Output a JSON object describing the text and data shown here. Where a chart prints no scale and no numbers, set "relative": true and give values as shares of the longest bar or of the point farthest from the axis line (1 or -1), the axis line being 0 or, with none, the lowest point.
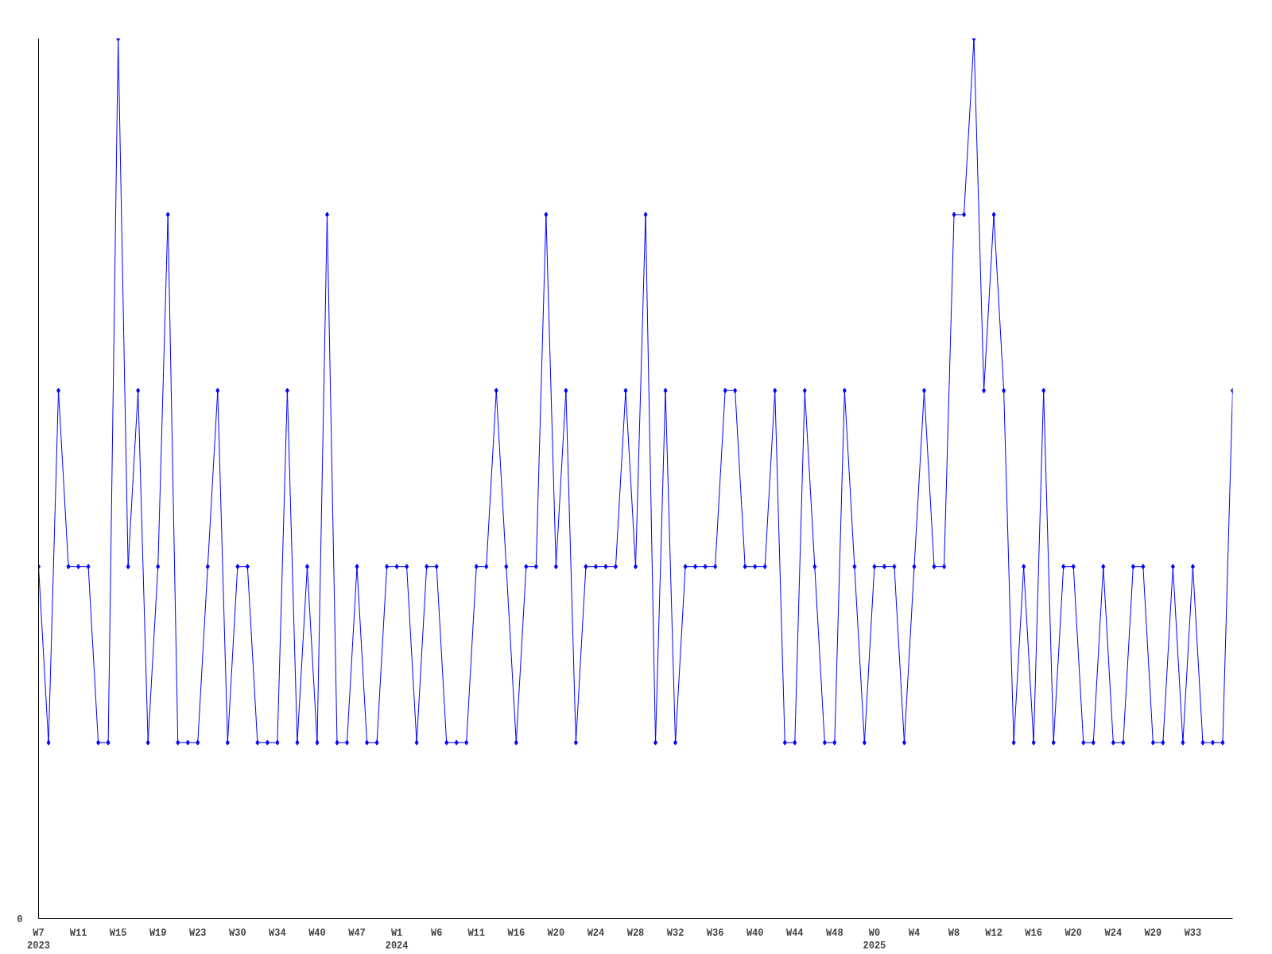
{
  "chart_data": {
    "type": "line",
    "relative": true,
    "color": "#0000ff",
    "marker": "diamond",
    "line_style": "solid",
    "grid": false,
    "legend": false,
    "categories": [
      "W7\n2023",
      null,
      null,
      null,
      "W11",
      null,
      null,
      null,
      "W15",
      null,
      null,
      null,
      "W19",
      null,
      null,
      null,
      "W23",
      null,
      null,
      null,
      "W30",
      null,
      null,
      null,
      "W34",
      null,
      null,
      null,
      "W40",
      null,
      null,
      null,
      "W47",
      null,
      null,
      null,
      "W1\n2024",
      null,
      null,
      null,
      "W6",
      null,
      null,
      null,
      "W11",
      null,
      null,
      null,
      "W16",
      null,
      null,
      null,
      "W20",
      null,
      null,
      null,
      "W24",
      null,
      null,
      null,
      "W28",
      null,
      null,
      null,
      "W32",
      null,
      null,
      null,
      "W36",
      null,
      null,
      null,
      "W40",
      null,
      null,
      null,
      "W44",
      null,
      null,
      null,
      "W48",
      null,
      null,
      null,
      "W0\n2025",
      null,
      null,
      null,
      "W4",
      null,
      null,
      null,
      "W8",
      null,
      null,
      null,
      "W12",
      null,
      null,
      null,
      "W16",
      null,
      null,
      null,
      "W20",
      null,
      null,
      null,
      "W24",
      null,
      null,
      null,
      "W29",
      null,
      null,
      null,
      "W33",
      null,
      null,
      null,
      null
    ],
    "values": [
      0.4,
      0.2,
      0.6,
      0.4,
      0.4,
      0.4,
      0.2,
      0.2,
      1.0,
      0.4,
      0.6,
      0.2,
      0.4,
      0.8,
      0.2,
      0.2,
      0.2,
      0.4,
      0.6,
      0.2,
      0.4,
      0.4,
      0.2,
      0.2,
      0.2,
      0.6,
      0.2,
      0.4,
      0.2,
      0.8,
      0.2,
      0.2,
      0.4,
      0.2,
      0.2,
      0.4,
      0.4,
      0.4,
      0.2,
      0.4,
      0.4,
      0.2,
      0.2,
      0.2,
      0.4,
      0.4,
      0.6,
      0.4,
      0.2,
      0.4,
      0.4,
      0.8,
      0.4,
      0.6,
      0.2,
      0.4,
      0.4,
      0.4,
      0.4,
      0.6,
      0.4,
      0.8,
      0.2,
      0.6,
      0.2,
      0.4,
      0.4,
      0.4,
      0.4,
      0.6,
      0.6,
      0.4,
      0.4,
      0.4,
      0.6,
      0.2,
      0.2,
      0.6,
      0.4,
      0.2,
      0.2,
      0.6,
      0.4,
      0.2,
      0.4,
      0.4,
      0.4,
      0.2,
      0.4,
      0.6,
      0.4,
      0.4,
      0.8,
      0.8,
      1.0,
      0.6,
      0.8,
      0.6,
      0.2,
      0.4,
      0.2,
      0.6,
      0.2,
      0.4,
      0.4,
      0.2,
      0.2,
      0.4,
      0.2,
      0.2,
      0.4,
      0.4,
      0.2,
      0.2,
      0.4,
      0.2,
      0.4,
      0.2,
      0.2,
      0.2,
      0.6
    ],
    "annotations": [
      "0"
    ]
  }
}
